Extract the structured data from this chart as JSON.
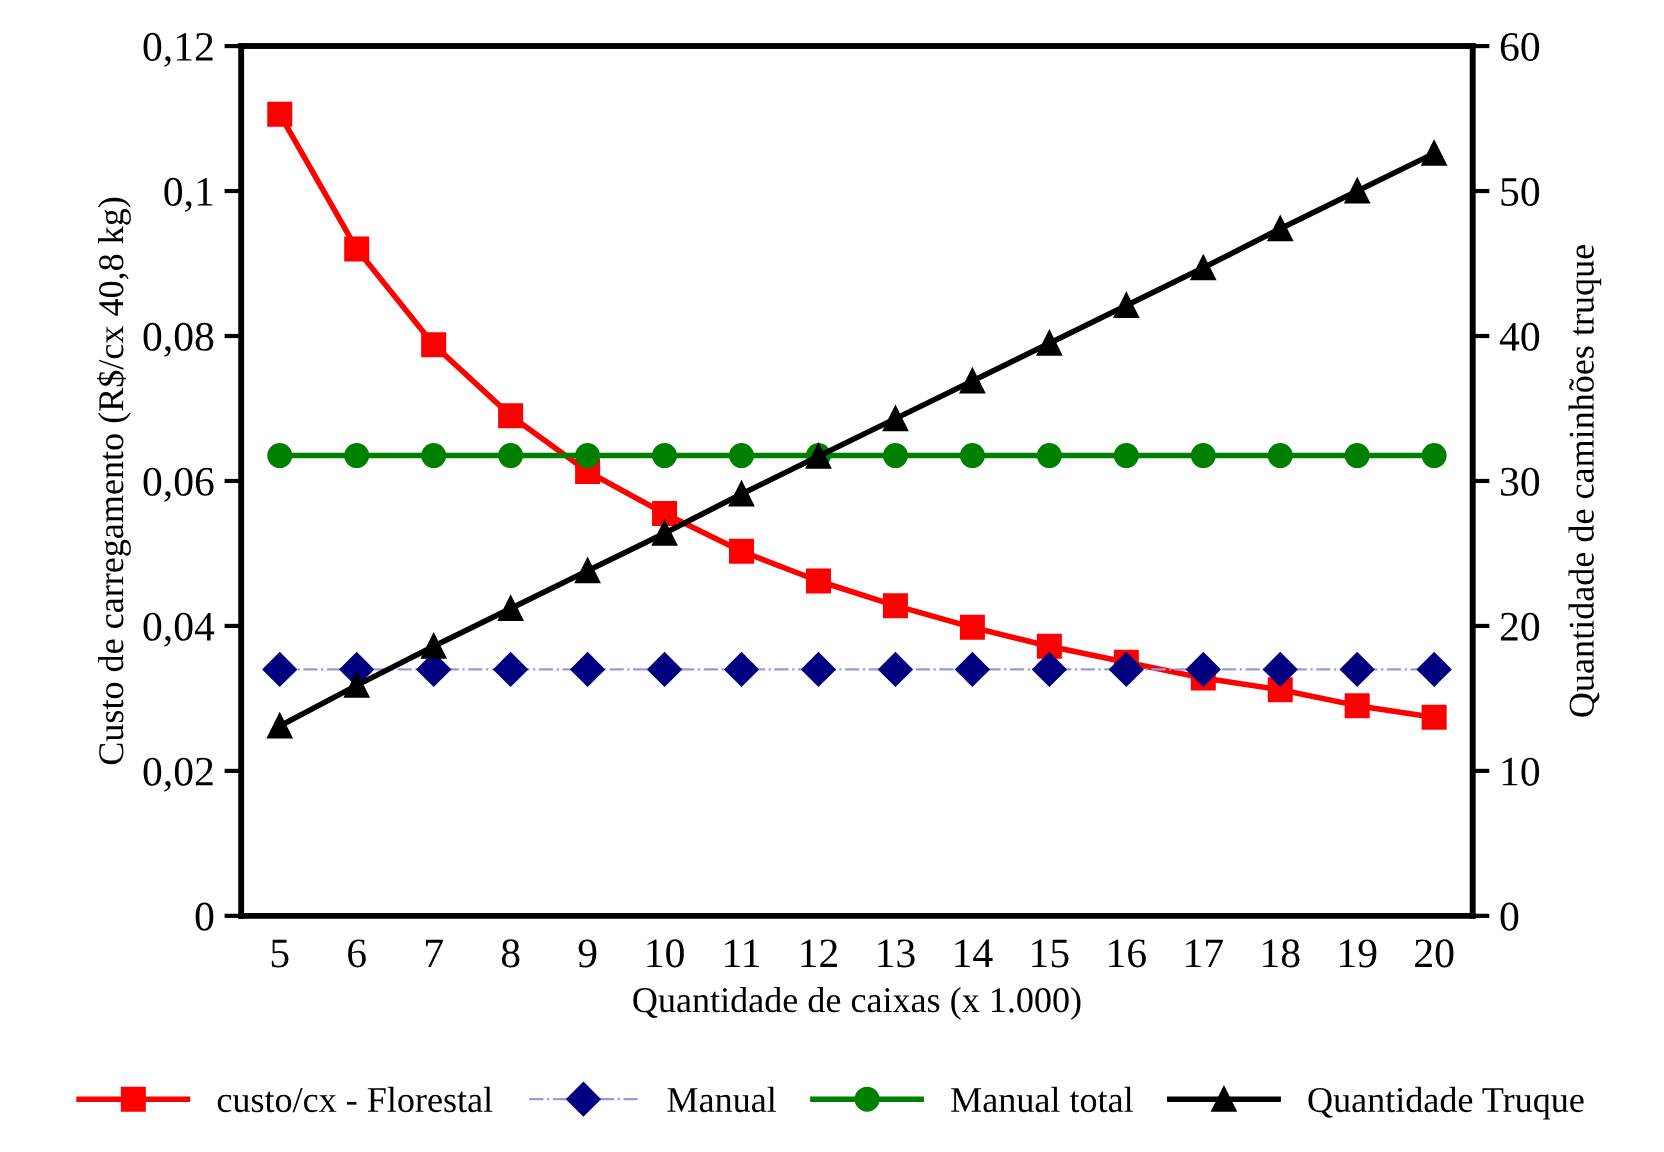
{
  "chart_data": {
    "type": "line",
    "xlabel": "Quantidade de caixas (x 1.000)",
    "ylabel": "Custo de carregamento (R$/cx 40,8 kg)",
    "y2label": "Quantidade de caminhões truque",
    "categories": [
      "5",
      "6",
      "7",
      "8",
      "9",
      "10",
      "11",
      "12",
      "13",
      "14",
      "15",
      "16",
      "17",
      "18",
      "19",
      "20"
    ],
    "ylim": [
      0,
      0.12
    ],
    "yticks": [
      {
        "value": 0,
        "label": "0"
      },
      {
        "value": 0.02,
        "label": "0,02"
      },
      {
        "value": 0.04,
        "label": "0,04"
      },
      {
        "value": 0.06,
        "label": "0,06"
      },
      {
        "value": 0.08,
        "label": "0,08"
      },
      {
        "value": 0.1,
        "label": "0,1"
      },
      {
        "value": 0.12,
        "label": "0,12"
      }
    ],
    "y2lim": [
      0,
      60
    ],
    "y2ticks": [
      0,
      10,
      20,
      30,
      40,
      50,
      60
    ],
    "grid": false,
    "legend": "bottom",
    "series": [
      {
        "name": "custo/cx - Florestal",
        "color": "#ff0000",
        "marker": "square",
        "line_style": "solid",
        "values": [
          0.1106,
          0.092,
          0.0788,
          0.069,
          0.0613,
          0.0555,
          0.0503,
          0.0462,
          0.0428,
          0.0398,
          0.0372,
          0.035,
          0.0328,
          0.0312,
          0.029,
          0.0274
        ]
      },
      {
        "name": "Manual",
        "color": "#000080",
        "marker": "diamond",
        "line_style": "dashdot",
        "values": [
          0.034,
          0.034,
          0.034,
          0.034,
          0.034,
          0.034,
          0.034,
          0.034,
          0.034,
          0.034,
          0.034,
          0.034,
          0.034,
          0.034,
          0.034,
          0.034
        ]
      },
      {
        "name": "Manual total",
        "color": "#008000",
        "marker": "circle",
        "line_style": "solid",
        "values": [
          0.0635,
          0.0635,
          0.0635,
          0.0635,
          0.0635,
          0.0635,
          0.0635,
          0.0635,
          0.0635,
          0.0635,
          0.0635,
          0.0635,
          0.0635,
          0.0635,
          0.0635,
          0.0635
        ]
      },
      {
        "name": "Quantidade Truque",
        "color": "#000000",
        "marker": "triangle",
        "line_style": "solid",
        "axis": "y2",
        "values": [
          13.1,
          15.9,
          18.6,
          21.2,
          23.8,
          26.4,
          29.1,
          31.7,
          34.3,
          36.9,
          39.5,
          42.1,
          44.7,
          47.4,
          50.0,
          52.6
        ]
      }
    ]
  }
}
